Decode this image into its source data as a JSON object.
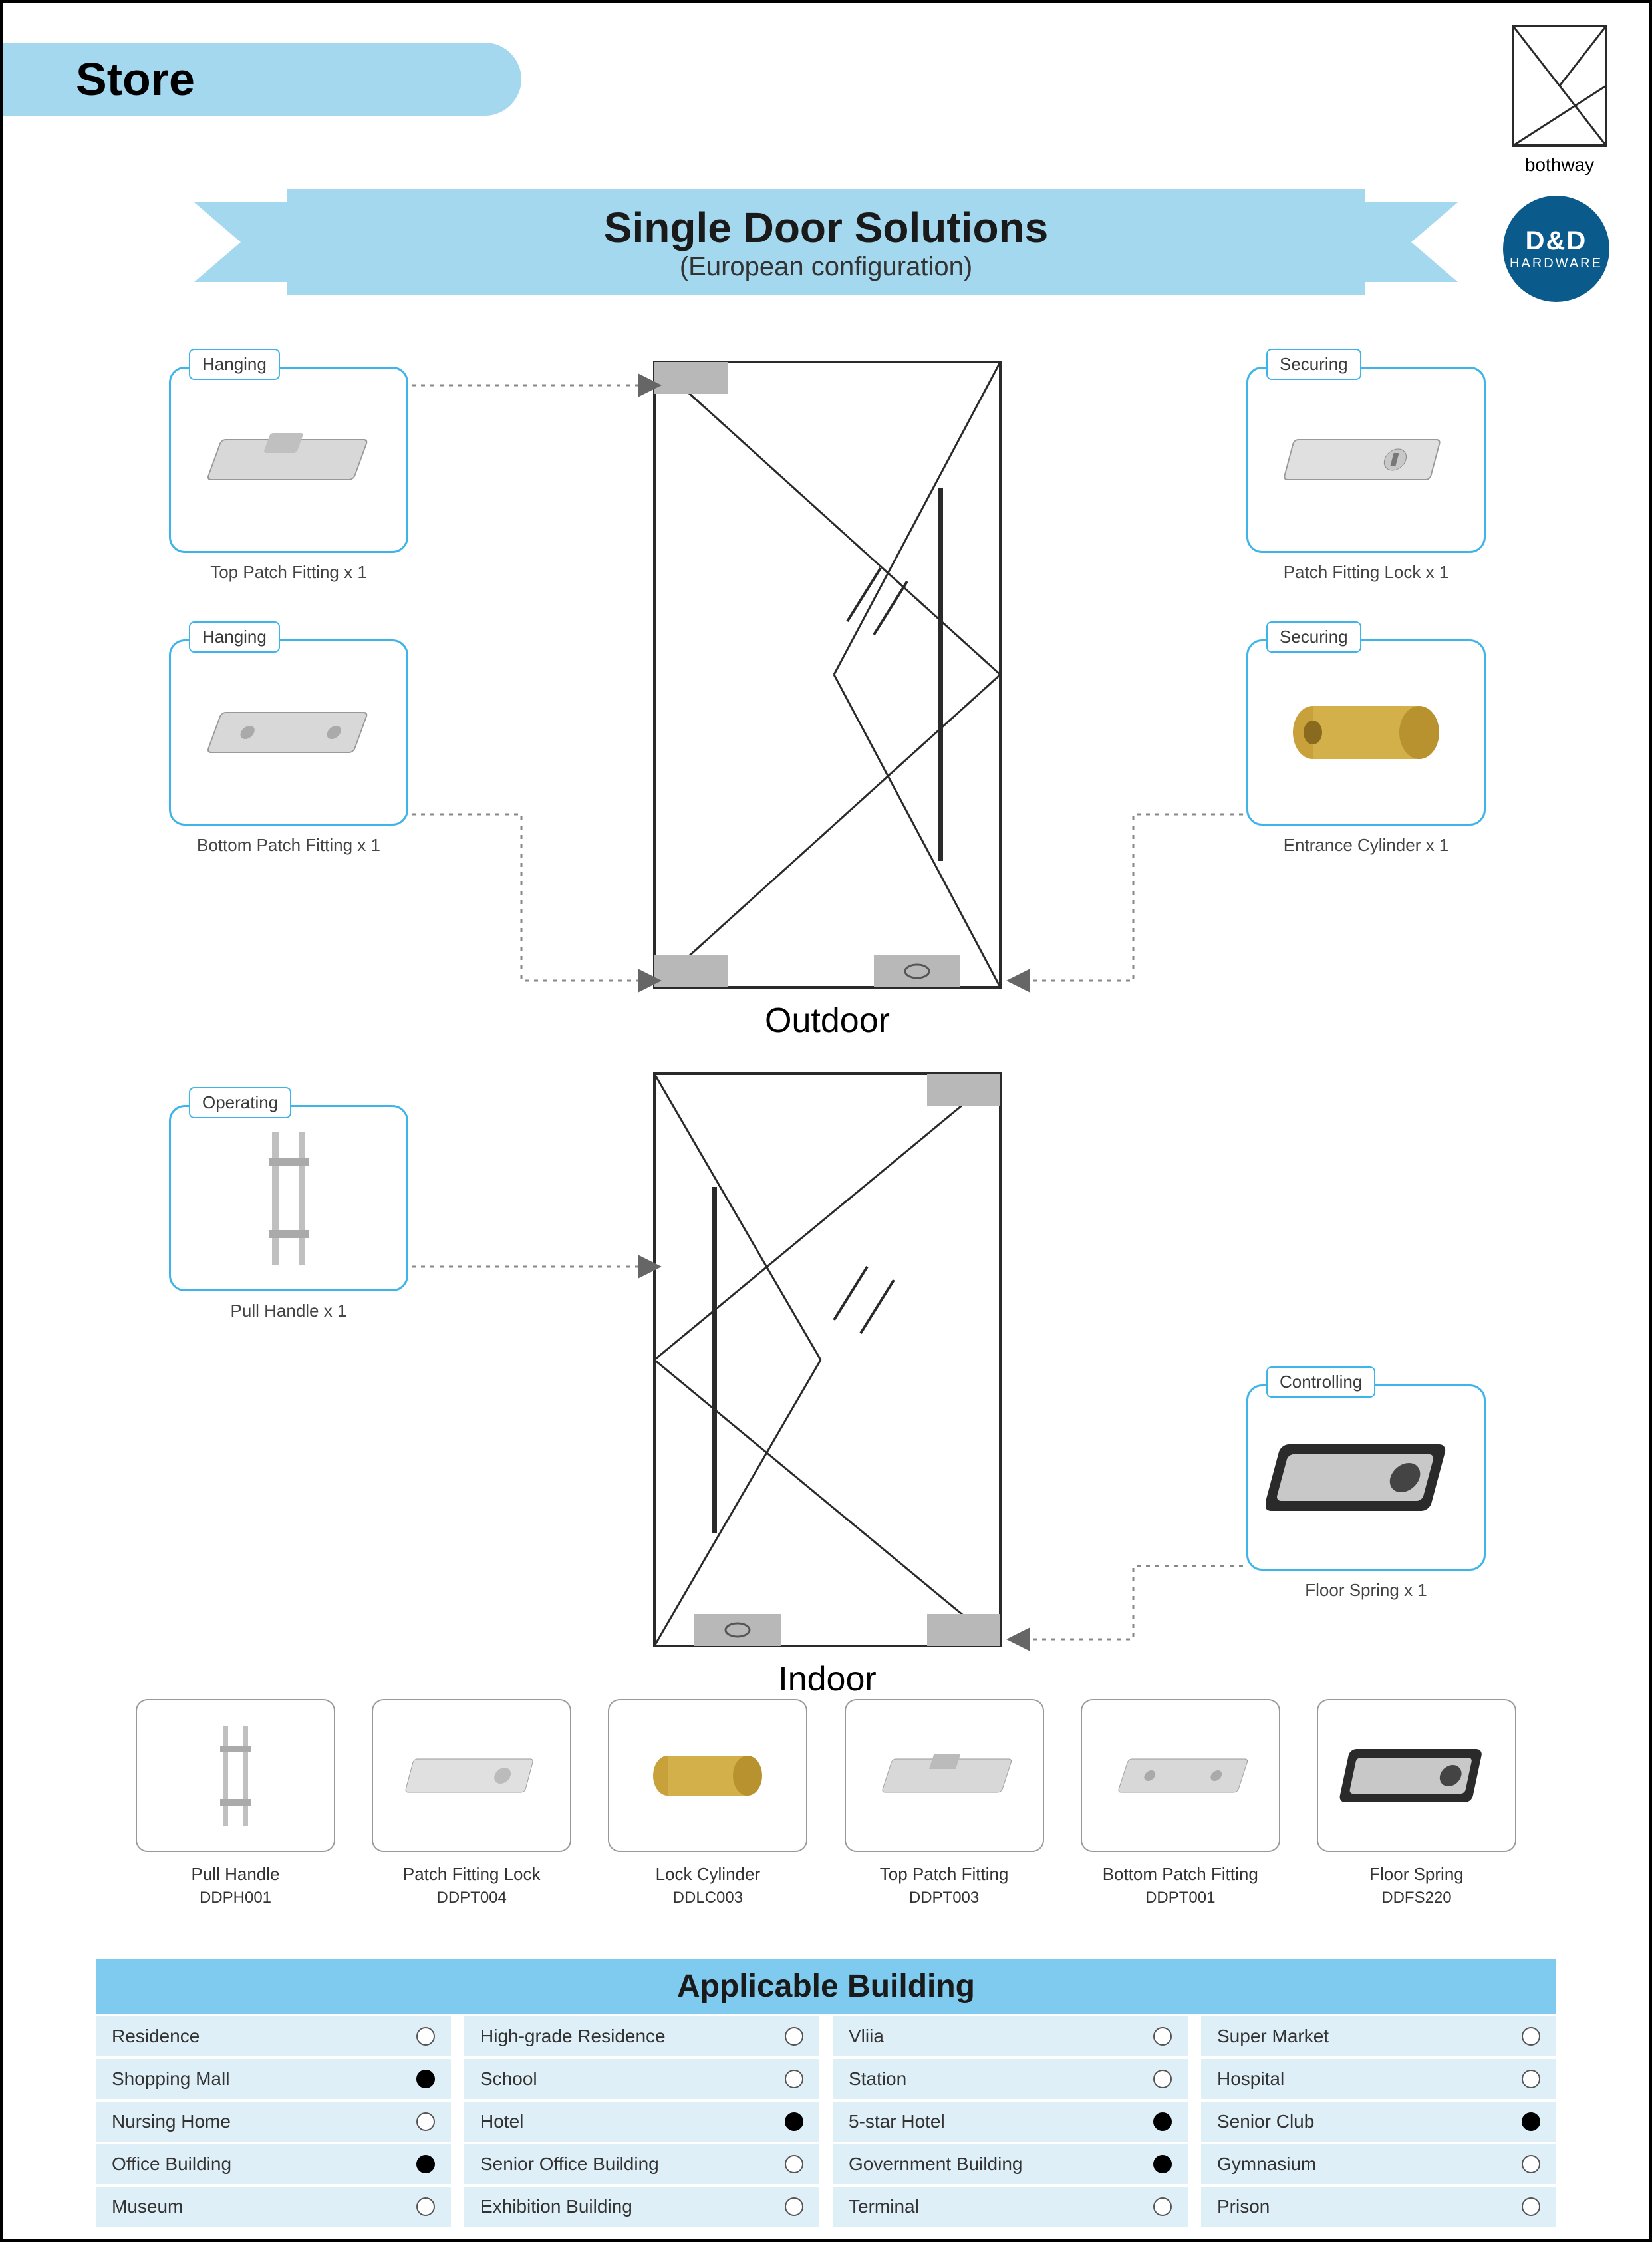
{
  "header": {
    "store": "Store",
    "bothway": "bothway"
  },
  "banner": {
    "title": "Single Door Solutions",
    "subtitle": "(European configuration)",
    "colors": {
      "ribbon": "#a4d8ef",
      "logo_bg": "#0a5a8c"
    }
  },
  "logo": {
    "brand": "D&D",
    "sub": "HARDWARE"
  },
  "doors": {
    "outdoor": "Outdoor",
    "indoor": "Indoor"
  },
  "components": {
    "top_patch": {
      "tag": "Hanging",
      "label": "Top Patch Fitting x 1"
    },
    "bottom_patch": {
      "tag": "Hanging",
      "label": "Bottom Patch Fitting x 1"
    },
    "patch_lock": {
      "tag": "Securing",
      "label": "Patch Fitting Lock x 1"
    },
    "cylinder": {
      "tag": "Securing",
      "label": "Entrance Cylinder x 1"
    },
    "pull_handle": {
      "tag": "Operating",
      "label": "Pull Handle x 1"
    },
    "floor_spring": {
      "tag": "Controlling",
      "label": "Floor Spring x 1"
    }
  },
  "products": [
    {
      "name": "Pull Handle",
      "code": "DDPH001"
    },
    {
      "name": "Patch Fitting Lock",
      "code": "DDPT004"
    },
    {
      "name": "Lock Cylinder",
      "code": "DDLC003"
    },
    {
      "name": "Top Patch Fitting",
      "code": "DDPT003"
    },
    {
      "name": "Bottom Patch Fitting",
      "code": "DDPT001"
    },
    {
      "name": "Floor Spring",
      "code": "DDFS220"
    }
  ],
  "table": {
    "title": "Applicable Building",
    "rows": [
      [
        {
          "label": "Residence",
          "on": false
        },
        {
          "label": "High-grade Residence",
          "on": false
        },
        {
          "label": "Vliia",
          "on": false
        },
        {
          "label": "Super Market",
          "on": false
        }
      ],
      [
        {
          "label": "Shopping Mall",
          "on": true
        },
        {
          "label": "School",
          "on": false
        },
        {
          "label": "Station",
          "on": false
        },
        {
          "label": "Hospital",
          "on": false
        }
      ],
      [
        {
          "label": "Nursing Home",
          "on": false
        },
        {
          "label": "Hotel",
          "on": true
        },
        {
          "label": "5-star Hotel",
          "on": true
        },
        {
          "label": "Senior Club",
          "on": true
        }
      ],
      [
        {
          "label": "Office Building",
          "on": true
        },
        {
          "label": "Senior Office Building",
          "on": false
        },
        {
          "label": "Government Building",
          "on": true
        },
        {
          "label": "Gymnasium",
          "on": false
        }
      ],
      [
        {
          "label": "Museum",
          "on": false
        },
        {
          "label": "Exhibition Building",
          "on": false
        },
        {
          "label": "Terminal",
          "on": false
        },
        {
          "label": "Prison",
          "on": false
        }
      ]
    ]
  },
  "styling": {
    "card_border": "#3fb4e8",
    "cell_bg": "#dfeff7",
    "header_bg": "#7fcbf0"
  }
}
